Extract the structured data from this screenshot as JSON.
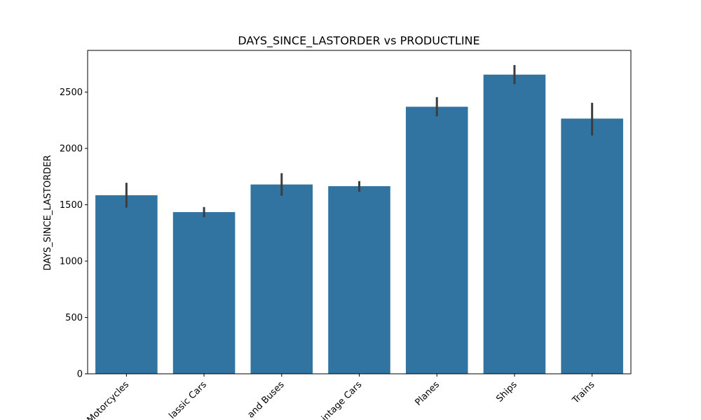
{
  "chart_data": {
    "type": "bar",
    "title": "DAYS_SINCE_LASTORDER vs PRODUCTLINE",
    "xlabel": "",
    "ylabel": "DAYS_SINCE_LASTORDER",
    "categories": [
      "Motorcycles",
      "Classic Cars",
      "Trucks and Buses",
      "Vintage Cars",
      "Planes",
      "Ships",
      "Trains"
    ],
    "tick_labels": [
      "Motorcycles",
      "lassic Cars",
      "and Buses",
      "intage Cars",
      "Planes",
      "Ships",
      "Trains"
    ],
    "values": [
      1585,
      1435,
      1680,
      1665,
      2370,
      2655,
      2265
    ],
    "error_low": [
      1475,
      1390,
      1580,
      1615,
      2285,
      2570,
      2115
    ],
    "error_high": [
      1695,
      1480,
      1780,
      1710,
      2455,
      2740,
      2405
    ],
    "ylim": [
      0,
      2870
    ],
    "yticks": [
      0,
      500,
      1000,
      1500,
      2000,
      2500
    ],
    "grid": false,
    "legend": "none",
    "colors": {
      "bar": "#3274a1",
      "error": "#3d3d3d",
      "axis": "#000000"
    }
  }
}
